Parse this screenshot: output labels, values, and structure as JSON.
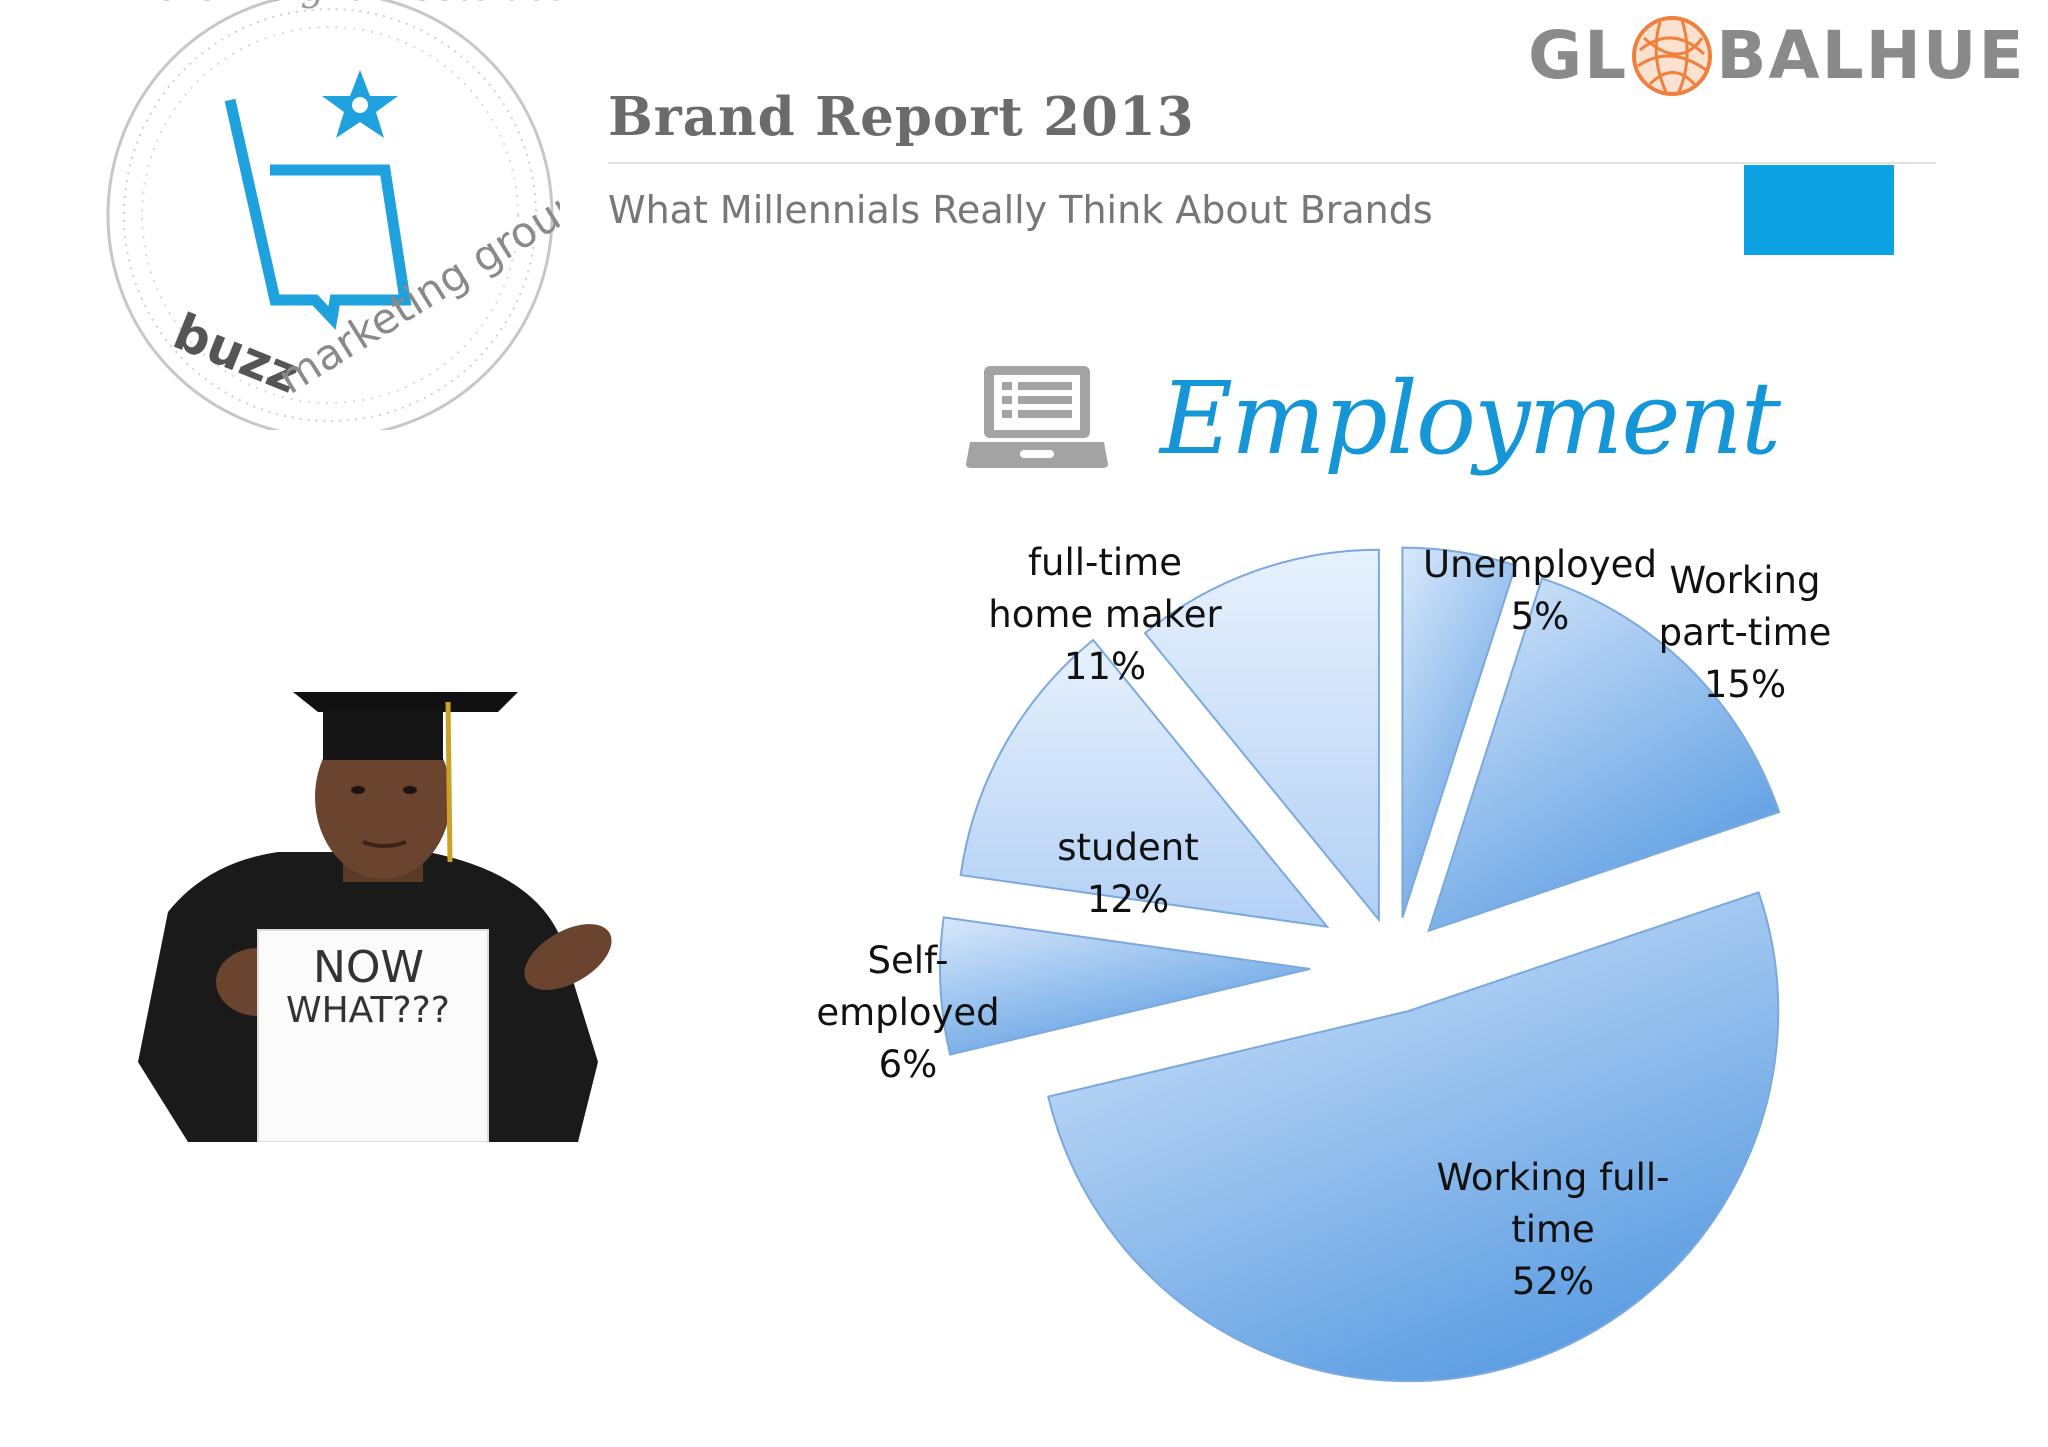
{
  "header": {
    "title": "Brand Report 2013",
    "subtitle": "What Millennials Really Think About Brands"
  },
  "logos": {
    "buzz": {
      "arc_text": "where insight meets activation",
      "name_bold": "buzz",
      "name_rest": "marketing group"
    },
    "globalhue": {
      "left": "GL",
      "right": "BALHUE"
    }
  },
  "photo": {
    "sign_line1": "NOW",
    "sign_line2": "WHAT???"
  },
  "colors": {
    "accent": "#0da3e2",
    "title_blue": "#1596d6",
    "globe_orange": "#f0803c",
    "header_gray": "#6b6b6b"
  },
  "chart_data": {
    "type": "pie",
    "title": "Employment",
    "exploded": true,
    "slices": [
      {
        "name": "Unemployed",
        "value": 5,
        "label_lines": [
          "Unemployed",
          "5%"
        ]
      },
      {
        "name": "Working part-time",
        "value": 15,
        "label_lines": [
          "Working",
          "part-time",
          "15%"
        ]
      },
      {
        "name": "Working full-time",
        "value": 52,
        "label_lines": [
          "Working full-",
          "time",
          "52%"
        ]
      },
      {
        "name": "Self-employed",
        "value": 6,
        "label_lines": [
          "Self-",
          "employed",
          "6%"
        ]
      },
      {
        "name": "student",
        "value": 12,
        "label_lines": [
          "student",
          "12%"
        ]
      },
      {
        "name": "full-time home maker",
        "value": 11,
        "label_lines": [
          "full-time",
          "home maker",
          "11%"
        ]
      }
    ]
  }
}
